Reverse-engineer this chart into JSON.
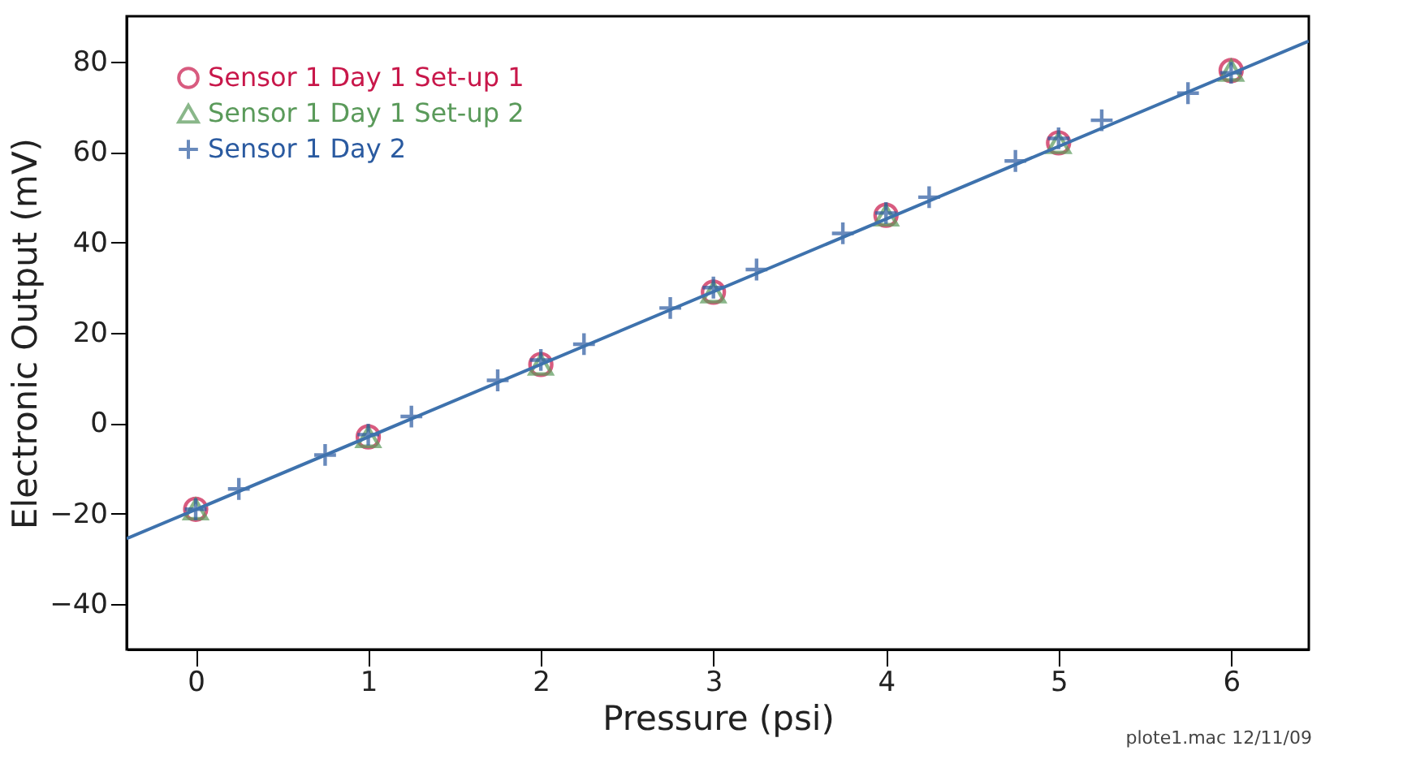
{
  "chart_data": {
    "type": "scatter",
    "xlabel": "Pressure (psi)",
    "ylabel": "Electronic Output (mV)",
    "xlim": [
      -0.4,
      6.45
    ],
    "xticks": [
      0,
      1,
      2,
      3,
      4,
      5,
      6
    ],
    "ylim": [
      -50,
      90
    ],
    "yticks": [
      -40,
      -20,
      0,
      20,
      40,
      60,
      80
    ],
    "grid": false,
    "legend": "top left",
    "annotations": [
      "plote1.mac 12/11/09"
    ],
    "series": [
      {
        "name": "Sensor 1 Day 1 Set-up 1",
        "color": "#c8174a",
        "marker": "circle",
        "x": [
          0,
          1,
          2,
          3,
          4,
          5,
          6
        ],
        "values": [
          -19,
          -3,
          13,
          29,
          46,
          62,
          78
        ]
      },
      {
        "name": "Sensor 1 Day 1 Set-up 2",
        "color": "#5a9a5a",
        "marker": "triangle",
        "x": [
          0,
          1,
          2,
          3,
          4,
          5,
          6
        ],
        "values": [
          -19,
          -3,
          13,
          29,
          46,
          62,
          78
        ]
      },
      {
        "name": "Sensor 1 Day 2",
        "color": "#2a5aa0",
        "marker": "cross",
        "x": [
          0,
          0.25,
          0.75,
          1,
          1.25,
          1.75,
          2,
          2.25,
          2.75,
          3,
          3.25,
          3.75,
          4,
          4.25,
          4.75,
          5,
          5.25,
          5.75,
          6
        ],
        "values": [
          -19,
          -14.5,
          -7,
          -2.5,
          1.5,
          9.5,
          14,
          17.5,
          25.5,
          30,
          34,
          42,
          46.5,
          50,
          58,
          63,
          67,
          73,
          77.5
        ]
      },
      {
        "type": "line",
        "color": "#3e72ad",
        "marker": "none",
        "line_style": "solid",
        "x": [
          -0.4,
          6.45
        ],
        "values": [
          -25.5,
          84.5
        ]
      }
    ]
  }
}
